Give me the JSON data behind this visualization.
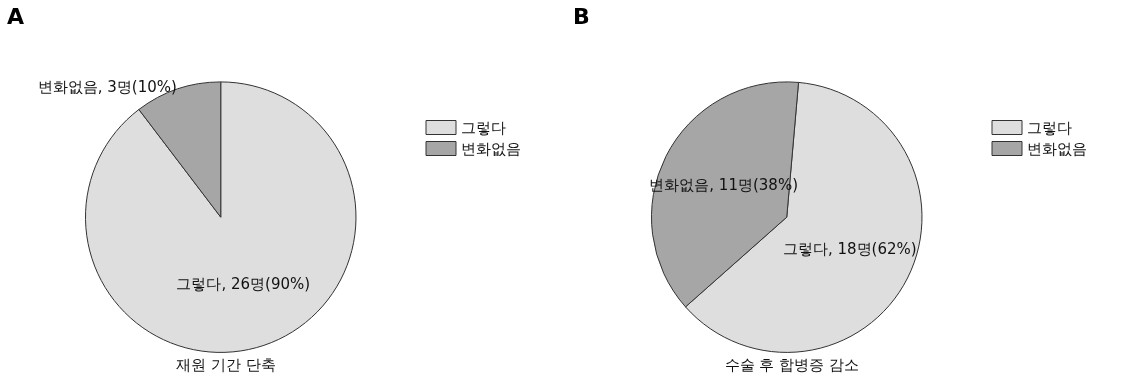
{
  "chart_data": [
    {
      "type": "pie",
      "title": "A",
      "xlabel": "재원 기간 단축",
      "categories": [
        "그렇다",
        "변화없음"
      ],
      "values": [
        26,
        3
      ],
      "colors": [
        "#dedede",
        "#a6a6a6"
      ],
      "value_labels": [
        "그렇다, 26명(90%)",
        "변화없음, 3명(10%)"
      ],
      "legend": "right"
    },
    {
      "type": "pie",
      "title": "B",
      "xlabel": "수술 후 합병증 감소",
      "categories": [
        "그렇다",
        "변화없음"
      ],
      "values": [
        18,
        11
      ],
      "colors": [
        "#dedede",
        "#a6a6a6"
      ],
      "value_labels": [
        "그렇다, 18명(62%)",
        "변화없음, 11명(38%)"
      ],
      "legend": "right"
    }
  ]
}
